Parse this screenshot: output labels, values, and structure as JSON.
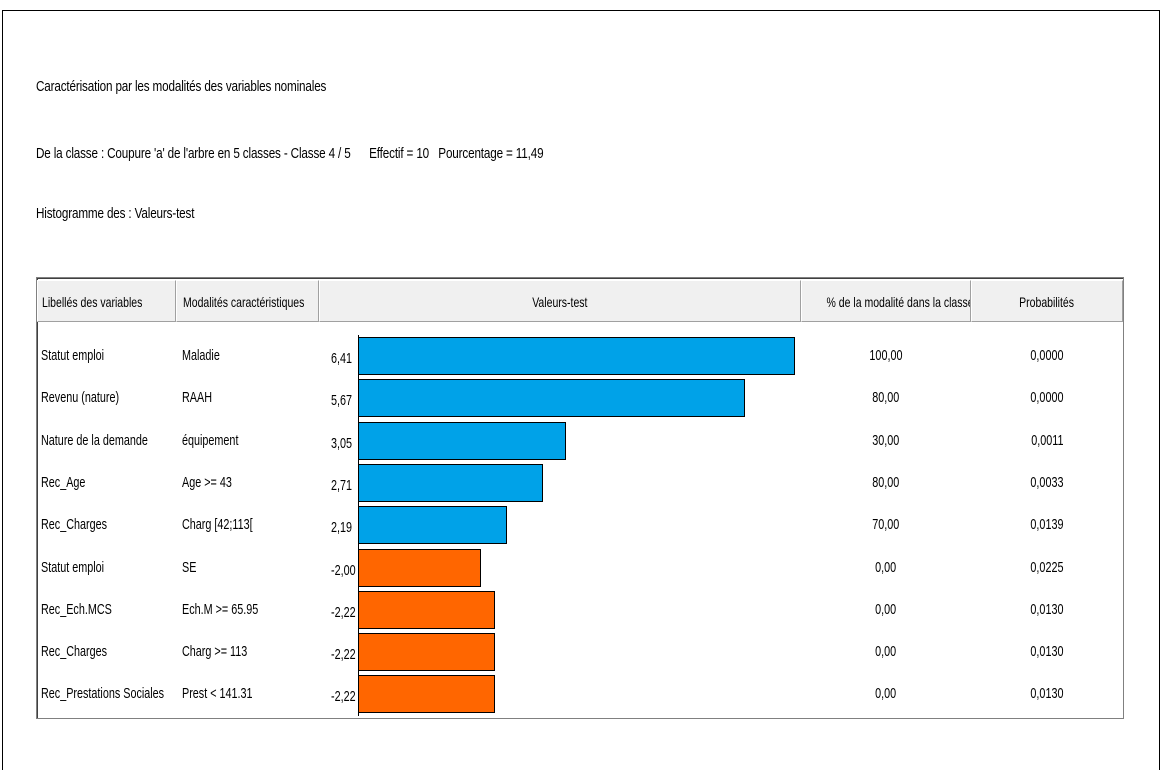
{
  "header": {
    "line1": "Caractérisation par les modalités des variables nominales",
    "line2_prefix": "De la classe :  Coupure 'a' de l'arbre en  5 classes  -  Classe  4 /  5",
    "line2_effectif": "Effectif =  10",
    "line2_pourcentage": "Pourcentage = 11,49",
    "line3": "Histogramme des :  Valeurs-test"
  },
  "table": {
    "columns": {
      "variable": "Libellés des variables",
      "modalite": "Modalités caractéristiques",
      "valeurs": "Valeurs-test",
      "pct": "% de la modalité dans la classe",
      "prob": "Probabilités"
    },
    "rows": [
      {
        "variable": "Statut emploi",
        "modalite": "Maladie",
        "valeur": "6,41",
        "pct": "100,00",
        "prob": "0,0000"
      },
      {
        "variable": "Revenu (nature)",
        "modalite": "RAAH",
        "valeur": "5,67",
        "pct": "80,00",
        "prob": "0,0000"
      },
      {
        "variable": "Nature de la demande",
        "modalite": "équipement",
        "valeur": "3,05",
        "pct": "30,00",
        "prob": "0,0011"
      },
      {
        "variable": "Rec_Age",
        "modalite": "Age >= 43",
        "valeur": "2,71",
        "pct": "80,00",
        "prob": "0,0033"
      },
      {
        "variable": "Rec_Charges",
        "modalite": "Charg [42;113[",
        "valeur": "2,19",
        "pct": "70,00",
        "prob": "0,0139"
      },
      {
        "variable": "Statut emploi",
        "modalite": "SE",
        "valeur": "-2,00",
        "pct": "0,00",
        "prob": "0,0225"
      },
      {
        "variable": "Rec_Ech.MCS",
        "modalite": "Ech.M >= 65.95",
        "valeur": "-2,22",
        "pct": "0,00",
        "prob": "0,0130"
      },
      {
        "variable": "Rec_Charges",
        "modalite": "Charg >= 113",
        "valeur": "-2,22",
        "pct": "0,00",
        "prob": "0,0130"
      },
      {
        "variable": "Rec_Prestations Sociales",
        "modalite": "Prest < 141.31",
        "valeur": "-2,22",
        "pct": "0,00",
        "prob": "0,0130"
      }
    ]
  },
  "chart_data": {
    "type": "bar",
    "categories": [
      "Maladie",
      "RAAH",
      "équipement",
      "Age >= 43",
      "Charg [42;113[",
      "SE",
      "Ech.M >= 65.95",
      "Charg >= 113",
      "Prest < 141.31"
    ],
    "values": [
      6.41,
      5.67,
      3.05,
      2.71,
      2.19,
      -2.0,
      -2.22,
      -2.22,
      -2.22
    ],
    "title": "Valeurs-test",
    "positive_color": "#00a2e8",
    "negative_color": "#ff6600"
  }
}
